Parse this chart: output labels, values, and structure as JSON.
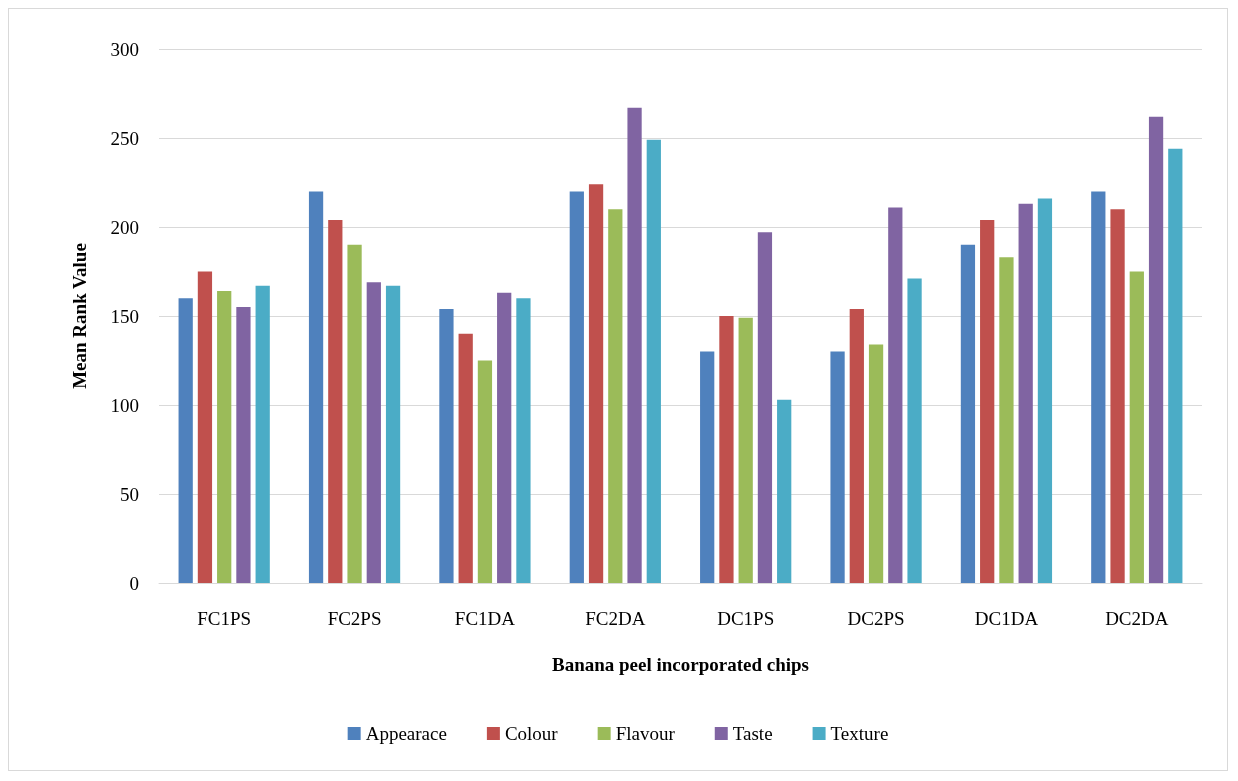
{
  "chart_data": {
    "type": "bar",
    "xlabel": "Banana peel incorporated chips",
    "ylabel": "Mean Rank Value",
    "categories": [
      "FC1PS",
      "FC2PS",
      "FC1DA",
      "FC2DA",
      "DC1PS",
      "DC2PS",
      "DC1DA",
      "DC2DA"
    ],
    "series": [
      {
        "name": "Appearace",
        "color": "#4f81bd",
        "values": [
          160,
          220,
          154,
          220,
          130,
          130,
          190,
          220
        ]
      },
      {
        "name": "Colour",
        "color": "#c0504d",
        "values": [
          175,
          204,
          140,
          224,
          150,
          154,
          204,
          210
        ]
      },
      {
        "name": "Flavour",
        "color": "#9bbb59",
        "values": [
          164,
          190,
          125,
          210,
          149,
          134,
          183,
          175
        ]
      },
      {
        "name": "Taste",
        "color": "#8064a2",
        "values": [
          155,
          169,
          163,
          267,
          197,
          211,
          213,
          262
        ]
      },
      {
        "name": "Texture",
        "color": "#4bacc6",
        "values": [
          167,
          167,
          160,
          249,
          103,
          171,
          216,
          244
        ]
      }
    ],
    "ylim": [
      0,
      300
    ],
    "yticks": [
      0,
      50,
      100,
      150,
      200,
      250,
      300
    ],
    "grid": "y",
    "legend": "bottom"
  }
}
